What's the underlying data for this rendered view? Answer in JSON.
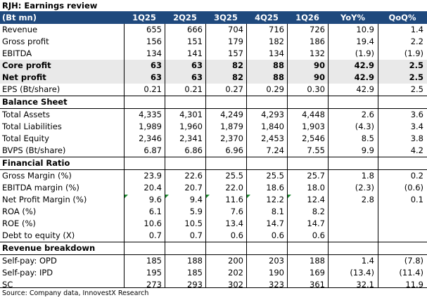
{
  "title": "RJH: Earnings review",
  "header": [
    "(Bt mn)",
    "1Q25",
    "2Q25",
    "3Q25",
    "4Q25",
    "1Q26",
    "YoY%",
    "QoQ%"
  ],
  "sections": [
    {
      "name": "",
      "rows": [
        {
          "label": "Revenue",
          "values": [
            "655",
            "666",
            "704",
            "716",
            "726",
            "10.9",
            "1.4"
          ]
        },
        {
          "label": "Gross profit",
          "values": [
            "156",
            "151",
            "179",
            "182",
            "186",
            "19.4",
            "2.2"
          ]
        },
        {
          "label": "EBITDA",
          "values": [
            "134",
            "141",
            "157",
            "134",
            "132",
            "(1.9)",
            "(1.9)"
          ]
        },
        {
          "label": "Core profit",
          "values": [
            "63",
            "63",
            "82",
            "88",
            "90",
            "42.9",
            "2.5"
          ],
          "bold": true
        },
        {
          "label": "Net profit",
          "values": [
            "63",
            "63",
            "82",
            "88",
            "90",
            "42.9",
            "2.5"
          ],
          "bold": true
        },
        {
          "label": "EPS (Bt/share)",
          "values": [
            "0.21",
            "0.21",
            "0.27",
            "0.29",
            "0.30",
            "42.9",
            "2.5"
          ]
        }
      ]
    },
    {
      "name": "Balance Sheet",
      "rows": [
        {
          "label": "Total Assets",
          "values": [
            "4,335",
            "4,301",
            "4,249",
            "4,293",
            "4,448",
            "2.6",
            "3.6"
          ]
        },
        {
          "label": "Total Liabilities",
          "values": [
            "1,989",
            "1,960",
            "1,879",
            "1,840",
            "1,903",
            "(4.3)",
            "3.4"
          ]
        },
        {
          "label": "Total Equity",
          "values": [
            "2,346",
            "2,341",
            "2,370",
            "2,453",
            "2,546",
            "8.5",
            "3.8"
          ]
        },
        {
          "label": "BVPS (Bt/share)",
          "values": [
            "6.87",
            "6.86",
            "6.96",
            "7.24",
            "7.55",
            "9.9",
            "4.2"
          ]
        }
      ]
    },
    {
      "name": "Financial Ratio",
      "rows": [
        {
          "label": "Gross Margin (%)",
          "values": [
            "23.9",
            "22.6",
            "25.5",
            "25.5",
            "25.7",
            "1.8",
            "0.2"
          ]
        },
        {
          "label": "EBITDA margin (%)",
          "values": [
            "20.4",
            "20.7",
            "22.0",
            "18.6",
            "18.0",
            "(2.3)",
            "(0.6)"
          ]
        },
        {
          "label": "Net Profit Margin (%)",
          "values": [
            "9.6",
            "9.4",
            "11.6",
            "12.2",
            "12.4",
            "2.8",
            "0.1"
          ],
          "markers": true
        },
        {
          "label": "ROA (%)",
          "values": [
            "6.1",
            "5.9",
            "7.6",
            "8.1",
            "8.2",
            "",
            ""
          ]
        },
        {
          "label": "ROE (%)",
          "values": [
            "10.6",
            "10.5",
            "13.4",
            "14.7",
            "14.7",
            "",
            ""
          ]
        },
        {
          "label": "Debt to equity (X)",
          "values": [
            "0.7",
            "0.7",
            "0.6",
            "0.6",
            "0.6",
            "",
            ""
          ]
        }
      ]
    },
    {
      "name": "Revenue breakdown",
      "rows": [
        {
          "label": "Self-pay: OPD",
          "values": [
            "185",
            "188",
            "200",
            "203",
            "188",
            "1.4",
            "(7.8)"
          ]
        },
        {
          "label": "Self-pay: IPD",
          "values": [
            "195",
            "185",
            "202",
            "190",
            "169",
            "(13.4)",
            "(11.4)"
          ]
        },
        {
          "label": "SC",
          "values": [
            "273",
            "293",
            "302",
            "323",
            "361",
            "32.1",
            "11.9"
          ]
        }
      ]
    }
  ],
  "source": "Source: Company data, InnovestX Research",
  "colors": {
    "header_bg": "#1f497d",
    "header_text": "#ffffff",
    "shade": "#e9e9e9",
    "marker": "#1b8a2e"
  }
}
